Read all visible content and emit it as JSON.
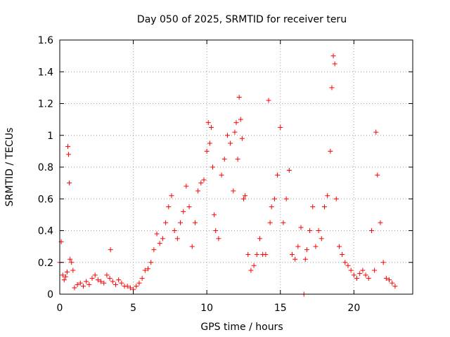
{
  "chart_data": {
    "type": "scatter",
    "title": "Day 050 of 2025, SRMTID for receiver teru",
    "xlabel": "GPS time / hours",
    "ylabel": "SRMTID / TECUs",
    "xlim": [
      0,
      24
    ],
    "ylim": [
      0,
      1.6
    ],
    "xticks": [
      0,
      5,
      10,
      15,
      20
    ],
    "yticks": [
      0,
      0.2,
      0.4,
      0.6,
      0.8,
      1,
      1.2,
      1.4,
      1.6
    ],
    "xtick_labels": [
      "0",
      "5",
      "10",
      "15",
      "20"
    ],
    "ytick_labels": [
      "0",
      "0.2",
      "0.4",
      "0.6",
      "0.8",
      "1",
      "1.2",
      "1.4",
      "1.6"
    ],
    "grid": true,
    "marker": "plus",
    "color": "#ff0000",
    "series": [
      {
        "name": "SRMTID",
        "x": [
          0.0,
          0.1,
          0.2,
          0.3,
          0.4,
          0.5,
          0.55,
          0.6,
          0.65,
          0.7,
          0.8,
          0.9,
          1.0,
          1.2,
          1.4,
          1.6,
          1.8,
          2.0,
          2.2,
          2.4,
          2.6,
          2.8,
          3.0,
          3.2,
          3.4,
          3.45,
          3.6,
          3.8,
          4.0,
          4.2,
          4.4,
          4.6,
          4.8,
          5.0,
          5.2,
          5.4,
          5.6,
          5.8,
          6.0,
          6.2,
          6.4,
          6.6,
          6.8,
          7.0,
          7.2,
          7.4,
          7.6,
          7.8,
          8.0,
          8.2,
          8.4,
          8.6,
          8.8,
          9.0,
          9.2,
          9.4,
          9.6,
          9.8,
          10.0,
          10.1,
          10.2,
          10.3,
          10.4,
          10.5,
          10.6,
          10.8,
          11.0,
          11.2,
          11.4,
          11.6,
          11.8,
          11.9,
          12.0,
          12.1,
          12.2,
          12.3,
          12.4,
          12.5,
          12.6,
          12.8,
          13.0,
          13.2,
          13.4,
          13.6,
          13.8,
          14.0,
          14.2,
          14.3,
          14.4,
          14.6,
          14.8,
          15.0,
          15.2,
          15.4,
          15.6,
          15.8,
          16.0,
          16.2,
          16.4,
          16.6,
          16.7,
          16.8,
          17.0,
          17.2,
          17.4,
          17.6,
          17.8,
          18.0,
          18.2,
          18.4,
          18.5,
          18.6,
          18.7,
          18.8,
          19.0,
          19.2,
          19.4,
          19.6,
          19.8,
          20.0,
          20.2,
          20.4,
          20.6,
          20.8,
          21.0,
          21.2,
          21.4,
          21.5,
          21.6,
          21.8,
          22.0,
          22.2,
          22.4,
          22.6,
          22.8
        ],
        "y": [
          0.2,
          0.33,
          0.12,
          0.09,
          0.11,
          0.14,
          0.93,
          0.88,
          0.7,
          0.22,
          0.2,
          0.15,
          0.04,
          0.06,
          0.07,
          0.05,
          0.08,
          0.06,
          0.1,
          0.12,
          0.09,
          0.08,
          0.07,
          0.12,
          0.1,
          0.28,
          0.08,
          0.06,
          0.09,
          0.07,
          0.05,
          0.05,
          0.04,
          0.03,
          0.05,
          0.07,
          0.1,
          0.15,
          0.16,
          0.2,
          0.28,
          0.38,
          0.32,
          0.35,
          0.45,
          0.55,
          0.62,
          0.4,
          0.35,
          0.45,
          0.52,
          0.68,
          0.55,
          0.3,
          0.45,
          0.65,
          0.7,
          0.72,
          0.9,
          1.08,
          0.95,
          1.05,
          0.8,
          0.5,
          0.4,
          0.35,
          0.75,
          0.85,
          1.0,
          0.95,
          0.65,
          1.02,
          1.08,
          0.85,
          1.24,
          1.1,
          0.98,
          0.6,
          0.62,
          0.25,
          0.15,
          0.18,
          0.25,
          0.35,
          0.25,
          0.25,
          1.22,
          0.45,
          0.55,
          0.6,
          0.75,
          1.05,
          0.45,
          0.6,
          0.78,
          0.25,
          0.22,
          0.3,
          0.42,
          0.0,
          0.22,
          0.28,
          0.4,
          0.55,
          0.3,
          0.4,
          0.35,
          0.55,
          0.62,
          0.9,
          1.3,
          1.5,
          1.45,
          0.6,
          0.3,
          0.25,
          0.2,
          0.18,
          0.15,
          0.12,
          0.1,
          0.13,
          0.15,
          0.12,
          0.1,
          0.4,
          0.15,
          1.02,
          0.75,
          0.45,
          0.2,
          0.1,
          0.09,
          0.07,
          0.05
        ]
      }
    ]
  }
}
